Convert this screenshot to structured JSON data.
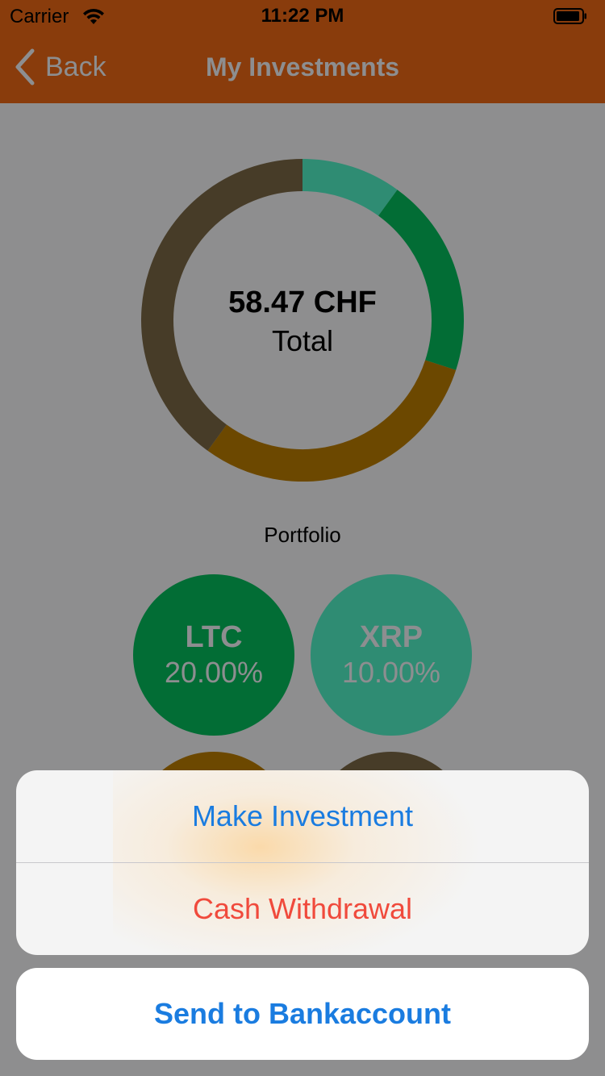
{
  "status_bar": {
    "carrier": "Carrier",
    "time": "11:22 PM"
  },
  "nav": {
    "back_label": "Back",
    "title": "My Investments"
  },
  "total": {
    "amount": "58.47 CHF",
    "label": "Total"
  },
  "portfolio_label": "Portfolio",
  "colors": {
    "bar_bg": "#893c0c",
    "backdrop": "#8e8e8f",
    "action_blue": "#1a7ce0",
    "destructive_red": "#f04a3c"
  },
  "chart_data": {
    "type": "pie",
    "categories": [
      "XRP",
      "LTC",
      "",
      ""
    ],
    "values": [
      10,
      20,
      30,
      40
    ],
    "colors": [
      "#2f8c73",
      "#026d35",
      "#6c4800",
      "#473c28"
    ]
  },
  "coins": [
    {
      "symbol": "LTC",
      "percent": "20.00%",
      "color": "#026d35"
    },
    {
      "symbol": "XRP",
      "percent": "10.00%",
      "color": "#2f8c73"
    },
    {
      "color": "#6c4800"
    },
    {
      "color": "#473c28"
    }
  ],
  "action_sheet": {
    "make_investment": "Make Investment",
    "cash_withdrawal": "Cash Withdrawal",
    "send_to_bank": "Send to Bankaccount"
  }
}
